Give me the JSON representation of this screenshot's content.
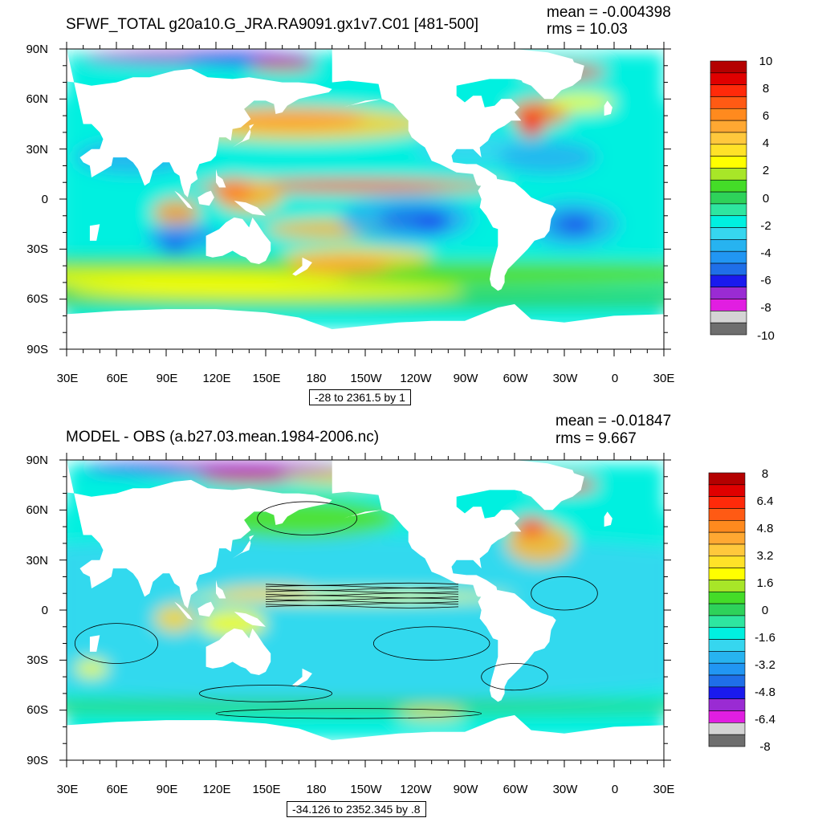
{
  "axis": {
    "lat_labels": [
      "90N",
      "60N",
      "30N",
      "0",
      "30S",
      "60S",
      "90S"
    ],
    "lon_labels": [
      "30E",
      "60E",
      "90E",
      "120E",
      "150E",
      "180",
      "150W",
      "120W",
      "90W",
      "60W",
      "30W",
      "0",
      "30E"
    ]
  },
  "colors": {
    "land": "#ffffff",
    "palette": [
      "#6e6e6e",
      "#d4d4d4",
      "#e11ee1",
      "#9a2bd3",
      "#1a1aee",
      "#1f6fe8",
      "#2196f3",
      "#27b3f0",
      "#36d6ef",
      "#00f0e0",
      "#2ee6a0",
      "#2fd45a",
      "#55e028",
      "#ffff00",
      "#ffd42e",
      "#ffb830",
      "#ff9f30",
      "#ff7f1a",
      "#ff4a15",
      "#ff1a0a",
      "#e80000",
      "#b80000"
    ]
  },
  "panels": [
    {
      "title": "SFWF_TOTAL g20a10.G_JRA.RA9091.gx1v7.C01 [481-500]",
      "mean": "mean = -0.004398",
      "rms": "rms = 10.03",
      "range_note": "-28 to 2361.5 by 1",
      "colorbar": {
        "labels": [
          "10",
          "8",
          "6",
          "4",
          "2",
          "0",
          "-2",
          "-4",
          "-6",
          "-8",
          "-10"
        ],
        "colors": [
          "#b40000",
          "#e00000",
          "#ff2a0a",
          "#ff5a14",
          "#ff8a1e",
          "#ffa832",
          "#ffc83c",
          "#ffe228",
          "#ffff00",
          "#a8e628",
          "#44dc28",
          "#2ed25a",
          "#2ee6a0",
          "#00f0e0",
          "#36d6ef",
          "#27b3f0",
          "#2196f3",
          "#1f6fe8",
          "#1a1aee",
          "#9a2bd3",
          "#e11ee1",
          "#d4d4d4",
          "#6e6e6e"
        ]
      },
      "contours": false
    },
    {
      "title": "MODEL - OBS (a.b27.03.mean.1984-2006.nc)",
      "mean": "mean = -0.01847",
      "rms": "rms = 9.667",
      "range_note": "-34.126 to 2352.345 by .8",
      "colorbar": {
        "labels": [
          "8",
          "6.4",
          "4.8",
          "3.2",
          "1.6",
          "0",
          "-1.6",
          "-3.2",
          "-4.8",
          "-6.4",
          "-8"
        ],
        "colors": [
          "#b40000",
          "#e00000",
          "#ff2a0a",
          "#ff5a14",
          "#ff8a1e",
          "#ffa832",
          "#ffc83c",
          "#ffe228",
          "#ffff00",
          "#a8e628",
          "#44dc28",
          "#2ed25a",
          "#2ee6a0",
          "#00f0e0",
          "#36d6ef",
          "#27b3f0",
          "#2196f3",
          "#1f6fe8",
          "#1a1aee",
          "#9a2bd3",
          "#e11ee1",
          "#d4d4d4",
          "#6e6e6e"
        ]
      },
      "contours": true
    }
  ]
}
